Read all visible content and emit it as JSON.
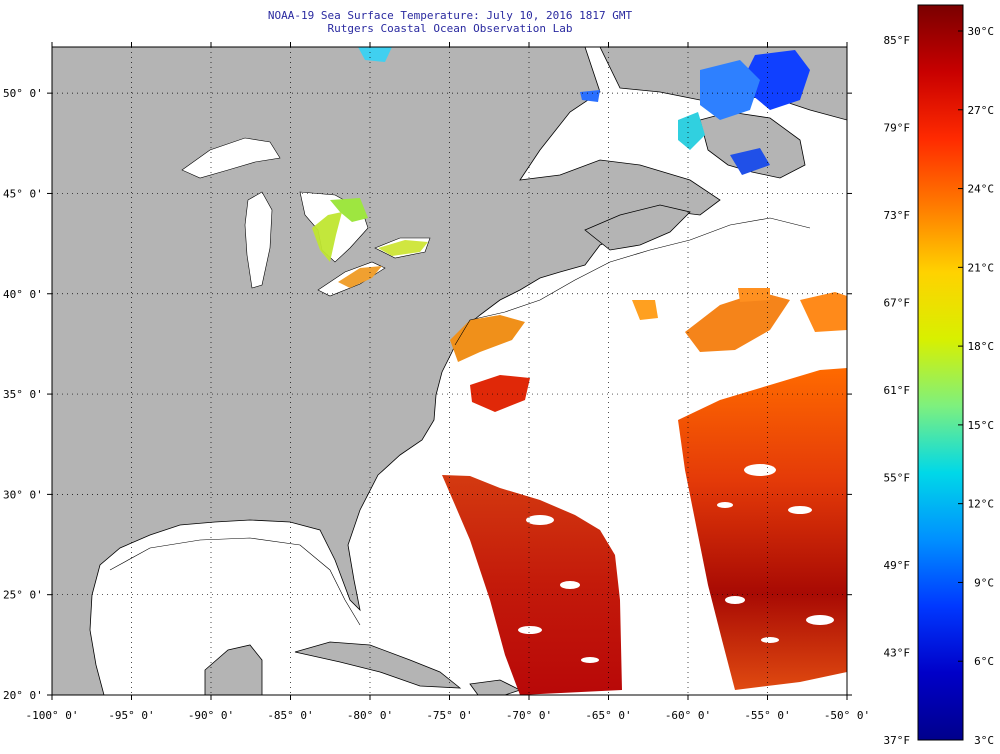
{
  "title": {
    "line1": "NOAA-19 Sea Surface Temperature:  July 10, 2016 1817 GMT",
    "line2": "Rutgers Coastal Ocean Observation Lab"
  },
  "map": {
    "lon_range": [
      -100,
      -50
    ],
    "lat_range": [
      20,
      52.3
    ],
    "lon_ticks": [
      {
        "value": -100,
        "label": "-100° 0'"
      },
      {
        "value": -95,
        "label": "-95° 0'"
      },
      {
        "value": -90,
        "label": "-90° 0'"
      },
      {
        "value": -85,
        "label": "-85° 0'"
      },
      {
        "value": -80,
        "label": "-80° 0'"
      },
      {
        "value": -75,
        "label": "-75° 0'"
      },
      {
        "value": -70,
        "label": "-70° 0'"
      },
      {
        "value": -65,
        "label": "-65° 0'"
      },
      {
        "value": -60,
        "label": "-60° 0'"
      },
      {
        "value": -55,
        "label": "-55° 0'"
      },
      {
        "value": -50,
        "label": "-50° 0'"
      }
    ],
    "lat_ticks": [
      {
        "value": 50,
        "label": "50° 0'"
      },
      {
        "value": 45,
        "label": "45° 0'"
      },
      {
        "value": 40,
        "label": "40° 0'"
      },
      {
        "value": 35,
        "label": "35° 0'"
      },
      {
        "value": 30,
        "label": "30° 0'"
      },
      {
        "value": 25,
        "label": "25° 0'"
      },
      {
        "value": 20,
        "label": "20° 0'"
      }
    ],
    "land_color": "#b4b4b4",
    "ocean_color": "#ffffff"
  },
  "colorbar": {
    "fahrenheit_labels": [
      "85°F",
      "79°F",
      "73°F",
      "67°F",
      "61°F",
      "55°F",
      "49°F",
      "43°F",
      "37°F"
    ],
    "celsius_labels": [
      "30°C",
      "27°C",
      "24°C",
      "21°C",
      "18°C",
      "15°C",
      "12°C",
      "9°C",
      "6°C",
      "3°C"
    ],
    "gradient_colors": [
      "#7a0000",
      "#c80000",
      "#ff2a00",
      "#ff7a00",
      "#ffd200",
      "#d8f000",
      "#7ef07e",
      "#00d8e8",
      "#0090ff",
      "#0038ff",
      "#0000c8",
      "#00008c"
    ]
  }
}
